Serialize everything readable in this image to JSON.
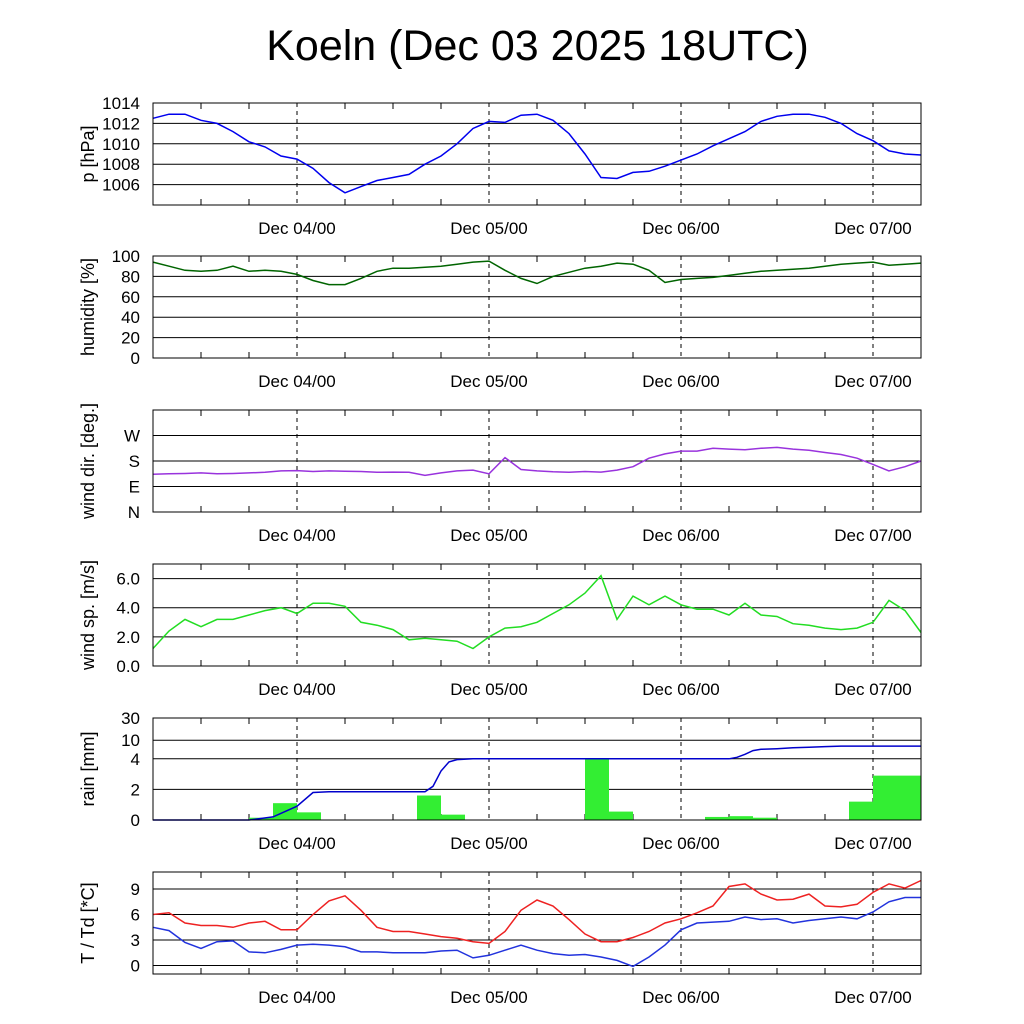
{
  "title": "Koeln (Dec 03 2025 18UTC)",
  "x_tick_labels": [
    "Dec 04/00",
    "Dec 05/00",
    "Dec 06/00",
    "Dec 07/00"
  ],
  "chart_data": [
    {
      "id": "pressure",
      "type": "line",
      "ylabel": "p [hPa]",
      "xlim": [
        -18,
        78
      ],
      "ylim": [
        1004,
        1014
      ],
      "yticks": [
        1006,
        1008,
        1010,
        1012,
        1014
      ],
      "ytick_labels": [
        "1006",
        "1008",
        "1010",
        "1012",
        "1014"
      ],
      "color": "#0000ee",
      "x": [
        -18,
        -16,
        -14,
        -12,
        -10,
        -8,
        -6,
        -4,
        -2,
        0,
        2,
        4,
        6,
        8,
        10,
        12,
        14,
        16,
        18,
        20,
        22,
        24,
        26,
        28,
        30,
        32,
        34,
        36,
        38,
        40,
        42,
        44,
        46,
        48,
        50,
        52,
        54,
        56,
        58,
        60,
        62,
        64,
        66,
        68,
        70,
        72,
        74,
        76,
        78
      ],
      "y": [
        1012.5,
        1012.9,
        1012.9,
        1012.3,
        1012.0,
        1011.2,
        1010.2,
        1009.7,
        1008.8,
        1008.5,
        1007.6,
        1006.2,
        1005.2,
        1005.8,
        1006.4,
        1006.7,
        1007.0,
        1008.0,
        1008.8,
        1010.0,
        1011.5,
        1012.2,
        1012.1,
        1012.8,
        1012.9,
        1012.3,
        1011.0,
        1009.0,
        1006.7,
        1006.6,
        1007.2,
        1007.3,
        1007.8,
        1008.4,
        1009.0,
        1009.8,
        1010.5,
        1011.2,
        1012.2,
        1012.7,
        1012.9,
        1012.9,
        1012.6,
        1012.0,
        1011.0,
        1010.3,
        1009.3,
        1009.0,
        1008.9
      ]
    },
    {
      "id": "humidity",
      "type": "line",
      "ylabel": "humidity [%]",
      "xlim": [
        -18,
        78
      ],
      "ylim": [
        0,
        100
      ],
      "yticks": [
        0,
        20,
        40,
        60,
        80,
        100
      ],
      "ytick_labels": [
        "0",
        "20",
        "40",
        "60",
        "80",
        "100"
      ],
      "color": "#006400",
      "x": [
        -18,
        -16,
        -14,
        -12,
        -10,
        -8,
        -6,
        -4,
        -2,
        0,
        2,
        4,
        6,
        8,
        10,
        12,
        14,
        16,
        18,
        20,
        22,
        24,
        26,
        28,
        30,
        32,
        34,
        36,
        38,
        40,
        42,
        44,
        46,
        48,
        50,
        52,
        54,
        56,
        58,
        60,
        62,
        64,
        66,
        68,
        70,
        72,
        74,
        76,
        78
      ],
      "y": [
        94,
        90,
        86,
        85,
        86,
        90,
        85,
        86,
        85,
        82,
        76,
        72,
        72,
        78,
        85,
        88,
        88,
        89,
        90,
        92,
        94,
        95,
        86,
        78,
        73,
        80,
        84,
        88,
        90,
        93,
        92,
        86,
        74,
        77,
        78,
        79,
        81,
        83,
        85,
        86,
        87,
        88,
        90,
        92,
        93,
        94,
        91,
        92,
        93
      ]
    },
    {
      "id": "wind_direction",
      "type": "line",
      "ylabel": "wind dir. [deg.]",
      "xlim": [
        -18,
        78
      ],
      "ylim": [
        0,
        360
      ],
      "yticks": [
        0,
        90,
        180,
        270
      ],
      "ytick_labels": [
        "N",
        "E",
        "S",
        "W"
      ],
      "color": "#9933dd",
      "x": [
        -18,
        -16,
        -14,
        -12,
        -10,
        -8,
        -6,
        -4,
        -2,
        0,
        2,
        4,
        6,
        8,
        10,
        12,
        14,
        16,
        18,
        20,
        22,
        24,
        26,
        28,
        30,
        32,
        34,
        36,
        38,
        40,
        42,
        44,
        46,
        48,
        50,
        52,
        54,
        56,
        58,
        60,
        62,
        64,
        66,
        68,
        70,
        72,
        74,
        76,
        78
      ],
      "y": [
        133,
        135,
        136,
        138,
        135,
        136,
        138,
        140,
        145,
        146,
        143,
        145,
        144,
        143,
        140,
        141,
        140,
        129,
        138,
        145,
        148,
        135,
        192,
        150,
        145,
        142,
        140,
        143,
        141,
        148,
        160,
        190,
        205,
        215,
        215,
        225,
        222,
        220,
        225,
        228,
        222,
        218,
        210,
        203,
        190,
        168,
        145,
        160,
        180
      ]
    },
    {
      "id": "wind_speed",
      "type": "line",
      "ylabel": "wind sp. [m/s]",
      "xlim": [
        -18,
        78
      ],
      "ylim": [
        0.0,
        7.0
      ],
      "yticks": [
        0.0,
        2.0,
        4.0,
        6.0
      ],
      "ytick_labels": [
        "0.0",
        "2.0",
        "4.0",
        "6.0"
      ],
      "color": "#22dd22",
      "x": [
        -18,
        -16,
        -14,
        -12,
        -10,
        -8,
        -6,
        -4,
        -2,
        0,
        2,
        4,
        6,
        8,
        10,
        12,
        14,
        16,
        18,
        20,
        22,
        24,
        26,
        28,
        30,
        32,
        34,
        36,
        38,
        40,
        42,
        44,
        46,
        48,
        50,
        52,
        54,
        56,
        58,
        60,
        62,
        64,
        66,
        68,
        70,
        72,
        74,
        76,
        78
      ],
      "y": [
        1.2,
        2.4,
        3.2,
        2.7,
        3.2,
        3.2,
        3.5,
        3.8,
        4.0,
        3.6,
        4.3,
        4.3,
        4.1,
        3.0,
        2.8,
        2.5,
        1.8,
        1.9,
        1.8,
        1.7,
        1.2,
        2.0,
        2.6,
        2.7,
        3.0,
        3.6,
        4.2,
        5.0,
        6.2,
        3.2,
        4.8,
        4.2,
        4.8,
        4.2,
        3.9,
        3.9,
        3.5,
        4.3,
        3.5,
        3.4,
        2.9,
        2.8,
        2.6,
        2.5,
        2.6,
        3.0,
        4.5,
        3.8,
        2.3
      ]
    },
    {
      "id": "rain",
      "type": "bar+line",
      "ylabel": "rain [mm]",
      "xlim": [
        -18,
        78
      ],
      "ylim": [
        0,
        30
      ],
      "yticks": [
        0,
        2,
        4,
        10,
        30
      ],
      "ytick_labels": [
        "0",
        "2",
        "4",
        "10",
        "30"
      ],
      "bar_color": "#33ee33",
      "line_color": "#0000cc",
      "bar_width_hours": 3,
      "bars": [
        {
          "x": -4.5,
          "value": 0.15
        },
        {
          "x": -1.5,
          "value": 1.1
        },
        {
          "x": 1.5,
          "value": 0.5
        },
        {
          "x": 16.5,
          "value": 1.6
        },
        {
          "x": 19.5,
          "value": 0.35
        },
        {
          "x": 37.5,
          "value": 4.0
        },
        {
          "x": 40.5,
          "value": 0.55
        },
        {
          "x": 52.5,
          "value": 0.2
        },
        {
          "x": 55.5,
          "value": 0.25
        },
        {
          "x": 58.5,
          "value": 0.15
        },
        {
          "x": 70.5,
          "value": 1.2
        },
        {
          "x": 73.5,
          "value": 2.9
        },
        {
          "x": 76.5,
          "value": 2.9
        }
      ],
      "accum_x": [
        -18,
        -6,
        -3,
        0,
        2,
        4,
        6,
        8,
        10,
        12,
        14,
        16,
        17,
        18,
        19,
        20,
        22,
        28,
        34,
        40,
        46,
        52,
        54,
        55,
        56,
        57,
        58,
        60,
        62,
        64,
        66,
        68,
        70,
        72,
        74,
        76,
        78
      ],
      "accum_y": [
        0,
        0,
        0.2,
        0.9,
        1.8,
        1.85,
        1.85,
        1.85,
        1.85,
        1.85,
        1.85,
        1.85,
        2.2,
        3.2,
        3.8,
        3.95,
        4.0,
        4.0,
        4.0,
        4.0,
        4.0,
        4.0,
        4.0,
        4.3,
        5.0,
        6.0,
        6.4,
        6.6,
        6.9,
        7.1,
        7.3,
        7.5,
        7.5,
        7.5,
        7.5,
        7.5,
        7.5
      ]
    },
    {
      "id": "temperature",
      "type": "line",
      "ylabel": "T / Td [*C]",
      "xlim": [
        -18,
        78
      ],
      "ylim": [
        -1,
        11
      ],
      "yticks": [
        0,
        3,
        6,
        9
      ],
      "ytick_labels": [
        "0",
        "3",
        "6",
        "9"
      ],
      "series": [
        {
          "name": "T",
          "color": "#ee2222",
          "x": [
            -18,
            -16,
            -14,
            -12,
            -10,
            -8,
            -6,
            -4,
            -2,
            0,
            2,
            4,
            6,
            8,
            10,
            12,
            14,
            16,
            18,
            20,
            22,
            24,
            26,
            28,
            30,
            32,
            34,
            36,
            38,
            40,
            42,
            44,
            46,
            48,
            50,
            52,
            54,
            56,
            58,
            60,
            62,
            64,
            66,
            68,
            70,
            72,
            74,
            76,
            78
          ],
          "y": [
            6.0,
            6.2,
            5.0,
            4.7,
            4.7,
            4.5,
            5.0,
            5.2,
            4.2,
            4.2,
            6.0,
            7.6,
            8.2,
            6.5,
            4.5,
            4.0,
            4.0,
            3.7,
            3.4,
            3.2,
            2.8,
            2.6,
            4.0,
            6.5,
            7.7,
            7.0,
            5.4,
            3.7,
            2.8,
            2.8,
            3.3,
            4.0,
            5.0,
            5.5,
            6.2,
            7.0,
            9.3,
            9.6,
            8.4,
            7.7,
            7.8,
            8.4,
            7.0,
            6.9,
            7.2,
            8.6,
            9.6,
            9.1,
            10.0
          ]
        },
        {
          "name": "Td",
          "color": "#2233dd",
          "x": [
            -18,
            -16,
            -14,
            -12,
            -10,
            -8,
            -6,
            -4,
            -2,
            0,
            2,
            4,
            6,
            8,
            10,
            12,
            14,
            16,
            18,
            20,
            22,
            24,
            26,
            28,
            30,
            32,
            34,
            36,
            38,
            40,
            42,
            44,
            46,
            48,
            50,
            52,
            54,
            56,
            58,
            60,
            62,
            64,
            66,
            68,
            70,
            72,
            74,
            76,
            78
          ],
          "y": [
            4.5,
            4.1,
            2.7,
            2.0,
            2.8,
            2.9,
            1.6,
            1.5,
            1.9,
            2.4,
            2.5,
            2.4,
            2.2,
            1.6,
            1.6,
            1.5,
            1.5,
            1.5,
            1.7,
            1.8,
            0.9,
            1.2,
            1.8,
            2.4,
            1.8,
            1.4,
            1.2,
            1.3,
            1.0,
            0.6,
            -0.1,
            1.0,
            2.4,
            4.2,
            5.0,
            5.1,
            5.2,
            5.7,
            5.4,
            5.5,
            5.0,
            5.3,
            5.5,
            5.7,
            5.5,
            6.3,
            7.5,
            8.0,
            8.0
          ]
        }
      ]
    }
  ]
}
